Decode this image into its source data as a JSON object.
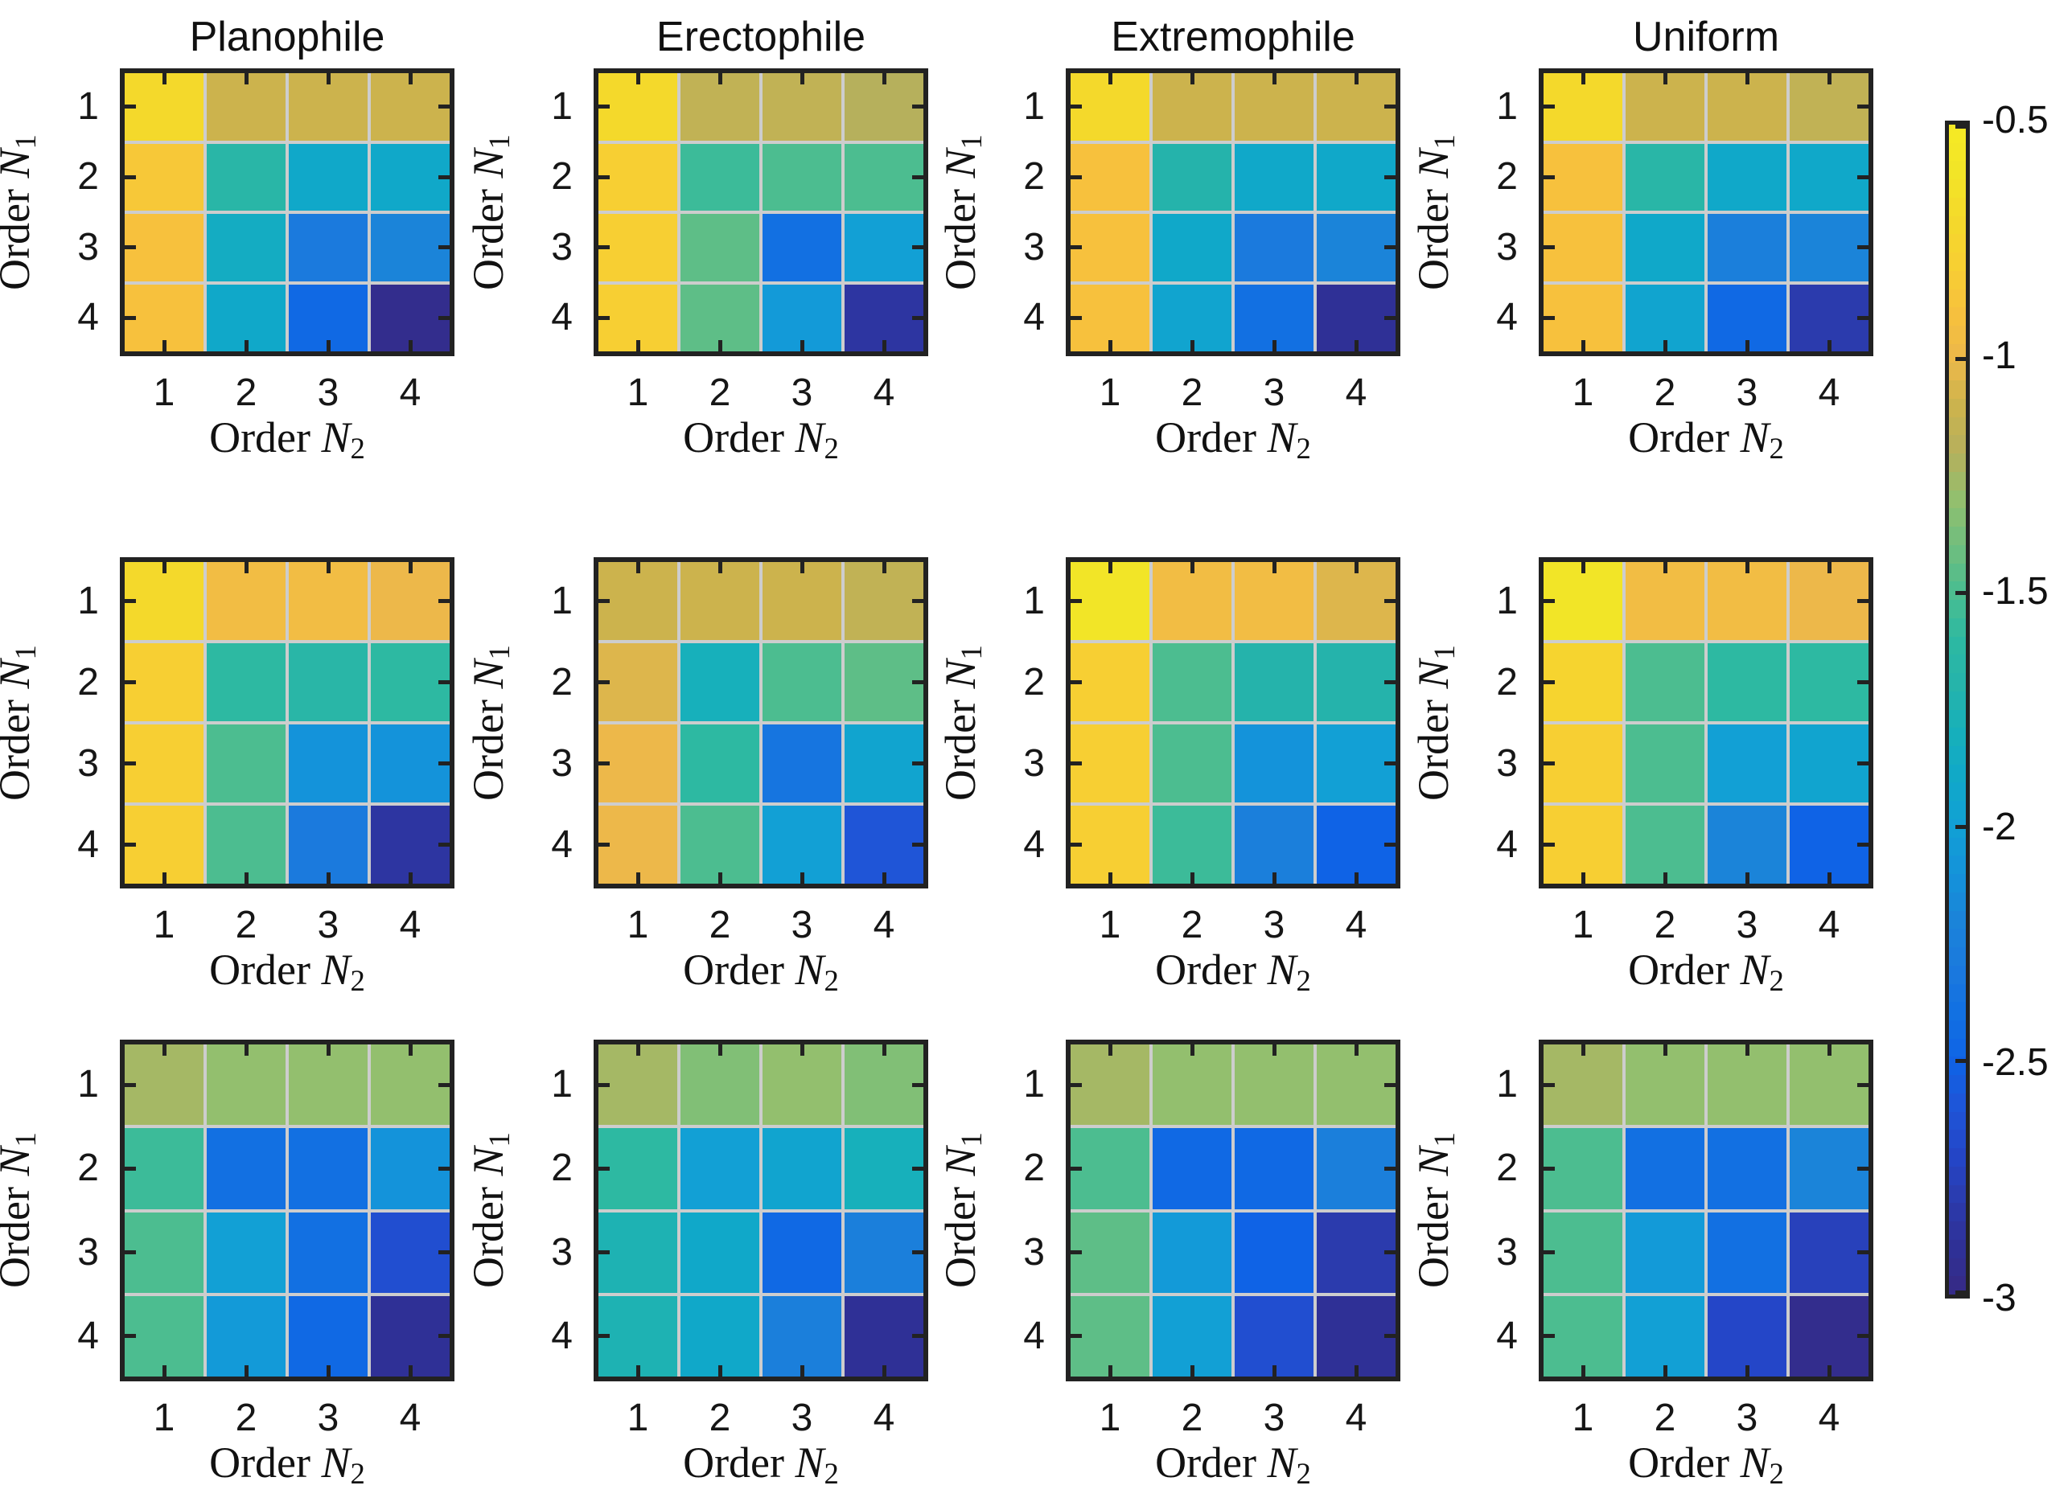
{
  "figure": {
    "background": "#ffffff"
  },
  "labels": {
    "x_prefix": "Order ",
    "x_var": "N",
    "x_sub": "2",
    "y_prefix": "Order ",
    "y_var": "N",
    "y_sub": "1"
  },
  "colors": {
    "axis": "#222222",
    "grid_line": "#cdcdcd",
    "text": "#111111",
    "background": "#ffffff"
  },
  "chart_data": {
    "type": "heatmap",
    "layout": "3 rows x 4 columns of 4x4 heatmaps sharing one vertical colorbar on the right",
    "column_titles": [
      "Planophile",
      "Erectophile",
      "Extremophile",
      "Uniform"
    ],
    "x": [
      1,
      2,
      3,
      4
    ],
    "y": [
      1,
      2,
      3,
      4
    ],
    "x_tick_labels": [
      "1",
      "2",
      "3",
      "4"
    ],
    "y_tick_labels": [
      "1",
      "2",
      "3",
      "4"
    ],
    "xlabel": "Order N_2",
    "ylabel": "Order N_1",
    "color_range": [
      -3,
      -0.5
    ],
    "colorbar": {
      "tick_labels": [
        "-0.5",
        "-1",
        "-1.5",
        "-2",
        "-2.5",
        "-3"
      ],
      "tick_values": [
        -0.5,
        -1,
        -1.5,
        -2,
        -2.5,
        -3
      ],
      "orientation": "vertical"
    },
    "colormap_stops": [
      "#362a84",
      "#2f3096",
      "#2b3bad",
      "#2446c8",
      "#1f55d7",
      "#0f63e6",
      "#1270e2",
      "#1b7add",
      "#1b84d9",
      "#1493da",
      "#12a0d5",
      "#10a8c9",
      "#17b0bb",
      "#25b3ab",
      "#2db9a2",
      "#4cbd90",
      "#70be7e",
      "#93bf6e",
      "#b6b05c",
      "#ccb34d",
      "#edb84a",
      "#f7c13d",
      "#f7cf33",
      "#f4d92b",
      "#f2e527",
      "#f6ea24"
    ],
    "panels": [
      {
        "grid_row": 1,
        "grid_col": 1,
        "condition": "Planophile",
        "values": [
          [
            -0.7,
            -1.1,
            -1.1,
            -1.1
          ],
          [
            -0.85,
            -1.65,
            -1.9,
            -1.9
          ],
          [
            -0.9,
            -1.85,
            -2.3,
            -2.2
          ],
          [
            -0.9,
            -1.9,
            -2.45,
            -2.95
          ]
        ]
      },
      {
        "grid_row": 1,
        "grid_col": 2,
        "condition": "Erectophile",
        "values": [
          [
            -0.7,
            -1.15,
            -1.15,
            -1.2
          ],
          [
            -0.8,
            -1.55,
            -1.5,
            -1.5
          ],
          [
            -0.8,
            -1.45,
            -2.4,
            -2.0
          ],
          [
            -0.8,
            -1.45,
            -2.05,
            -2.85
          ]
        ]
      },
      {
        "grid_row": 1,
        "grid_col": 3,
        "condition": "Extremophile",
        "values": [
          [
            -0.7,
            -1.1,
            -1.1,
            -1.1
          ],
          [
            -0.9,
            -1.7,
            -1.9,
            -1.9
          ],
          [
            -0.9,
            -1.9,
            -2.3,
            -2.2
          ],
          [
            -0.9,
            -1.95,
            -2.4,
            -2.9
          ]
        ]
      },
      {
        "grid_row": 1,
        "grid_col": 4,
        "condition": "Uniform",
        "values": [
          [
            -0.7,
            -1.1,
            -1.1,
            -1.15
          ],
          [
            -0.9,
            -1.65,
            -1.9,
            -1.9
          ],
          [
            -0.9,
            -1.9,
            -2.25,
            -2.2
          ],
          [
            -0.9,
            -1.95,
            -2.45,
            -2.8
          ]
        ]
      },
      {
        "grid_row": 2,
        "grid_col": 1,
        "condition": "Planophile",
        "values": [
          [
            -0.7,
            -0.95,
            -0.95,
            -1.0
          ],
          [
            -0.8,
            -1.6,
            -1.65,
            -1.6
          ],
          [
            -0.8,
            -1.5,
            -2.1,
            -2.1
          ],
          [
            -0.8,
            -1.5,
            -2.3,
            -2.85
          ]
        ]
      },
      {
        "grid_row": 2,
        "grid_col": 2,
        "condition": "Erectophile",
        "values": [
          [
            -1.1,
            -1.1,
            -1.1,
            -1.15
          ],
          [
            -1.05,
            -1.8,
            -1.5,
            -1.45
          ],
          [
            -1.0,
            -1.6,
            -2.35,
            -1.95
          ],
          [
            -1.0,
            -1.5,
            -2.0,
            -2.6
          ]
        ]
      },
      {
        "grid_row": 2,
        "grid_col": 3,
        "condition": "Extremophile",
        "values": [
          [
            -0.6,
            -0.95,
            -0.95,
            -1.05
          ],
          [
            -0.8,
            -1.5,
            -1.7,
            -1.7
          ],
          [
            -0.8,
            -1.5,
            -2.1,
            -2.0
          ],
          [
            -0.8,
            -1.55,
            -2.25,
            -2.5
          ]
        ]
      },
      {
        "grid_row": 2,
        "grid_col": 4,
        "condition": "Uniform",
        "values": [
          [
            -0.6,
            -0.95,
            -0.95,
            -1.0
          ],
          [
            -0.75,
            -1.5,
            -1.6,
            -1.6
          ],
          [
            -0.8,
            -1.5,
            -2.0,
            -1.95
          ],
          [
            -0.8,
            -1.5,
            -2.2,
            -2.5
          ]
        ]
      },
      {
        "grid_row": 3,
        "grid_col": 1,
        "condition": "Planophile",
        "values": [
          [
            -1.25,
            -1.3,
            -1.3,
            -1.3
          ],
          [
            -1.55,
            -2.4,
            -2.4,
            -2.1
          ],
          [
            -1.5,
            -2.0,
            -2.4,
            -2.65
          ],
          [
            -1.5,
            -2.05,
            -2.45,
            -2.9
          ]
        ]
      },
      {
        "grid_row": 3,
        "grid_col": 2,
        "condition": "Erectophile",
        "values": [
          [
            -1.25,
            -1.35,
            -1.3,
            -1.35
          ],
          [
            -1.6,
            -2.0,
            -1.95,
            -1.8
          ],
          [
            -1.75,
            -1.9,
            -2.45,
            -2.25
          ],
          [
            -1.75,
            -1.9,
            -2.25,
            -2.9
          ]
        ]
      },
      {
        "grid_row": 3,
        "grid_col": 3,
        "condition": "Extremophile",
        "values": [
          [
            -1.25,
            -1.3,
            -1.3,
            -1.3
          ],
          [
            -1.5,
            -2.45,
            -2.45,
            -2.25
          ],
          [
            -1.45,
            -2.05,
            -2.5,
            -2.8
          ],
          [
            -1.45,
            -2.0,
            -2.65,
            -2.9
          ]
        ]
      },
      {
        "grid_row": 3,
        "grid_col": 4,
        "condition": "Uniform",
        "values": [
          [
            -1.25,
            -1.3,
            -1.3,
            -1.3
          ],
          [
            -1.5,
            -2.4,
            -2.4,
            -2.2
          ],
          [
            -1.5,
            -2.05,
            -2.4,
            -2.75
          ],
          [
            -1.5,
            -2.0,
            -2.7,
            -2.95
          ]
        ]
      }
    ]
  }
}
